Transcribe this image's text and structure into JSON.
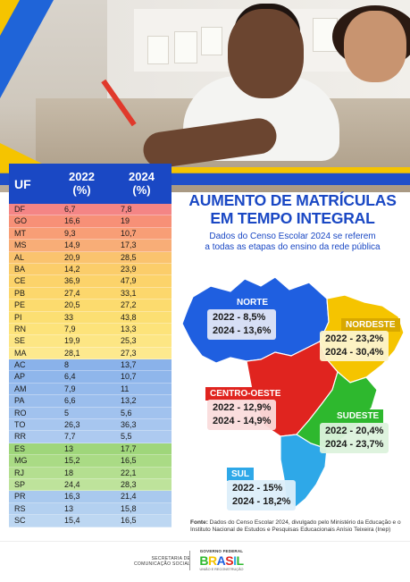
{
  "table": {
    "headers": {
      "uf": "UF",
      "y2022": "2022\n(%)",
      "y2024": "2024\n(%)"
    },
    "rows": [
      {
        "uf": "DF",
        "v2022": "6,7",
        "v2024": "7,8",
        "color": "#f48585"
      },
      {
        "uf": "GO",
        "v2022": "16,6",
        "v2024": "19",
        "color": "#f79077"
      },
      {
        "uf": "MT",
        "v2022": "9,3",
        "v2024": "10,7",
        "color": "#f89e76"
      },
      {
        "uf": "MS",
        "v2022": "14,9",
        "v2024": "17,3",
        "color": "#f8ad77"
      },
      {
        "uf": "AL",
        "v2022": "20,9",
        "v2024": "28,5",
        "color": "#fac36e"
      },
      {
        "uf": "BA",
        "v2022": "14,2",
        "v2024": "23,9",
        "color": "#fbcd6a"
      },
      {
        "uf": "CE",
        "v2022": "36,9",
        "v2024": "47,9",
        "color": "#fcd36a"
      },
      {
        "uf": "PB",
        "v2022": "27,4",
        "v2024": "33,1",
        "color": "#fcd76c"
      },
      {
        "uf": "PE",
        "v2022": "20,5",
        "v2024": "27,2",
        "color": "#fcdb6e"
      },
      {
        "uf": "PI",
        "v2022": "33",
        "v2024": "43,8",
        "color": "#fcdf72"
      },
      {
        "uf": "RN",
        "v2022": "7,9",
        "v2024": "13,3",
        "color": "#fde37a"
      },
      {
        "uf": "SE",
        "v2022": "19,9",
        "v2024": "25,3",
        "color": "#fde684"
      },
      {
        "uf": "MA",
        "v2022": "28,1",
        "v2024": "27,3",
        "color": "#fde98e"
      },
      {
        "uf": "AC",
        "v2022": "8",
        "v2024": "13,7",
        "color": "#8ab2ea"
      },
      {
        "uf": "AP",
        "v2022": "6,4",
        "v2024": "10,7",
        "color": "#8fb6eb"
      },
      {
        "uf": "AM",
        "v2022": "7,9",
        "v2024": "11",
        "color": "#95baec"
      },
      {
        "uf": "PA",
        "v2022": "6,6",
        "v2024": "13,2",
        "color": "#9bbeed"
      },
      {
        "uf": "RO",
        "v2022": "5",
        "v2024": "5,6",
        "color": "#a1c2ee"
      },
      {
        "uf": "TO",
        "v2022": "26,3",
        "v2024": "36,3",
        "color": "#a7c6ef"
      },
      {
        "uf": "RR",
        "v2022": "7,7",
        "v2024": "5,5",
        "color": "#adcaf0"
      },
      {
        "uf": "ES",
        "v2022": "13",
        "v2024": "17,7",
        "color": "#9fd67a"
      },
      {
        "uf": "MG",
        "v2022": "15,2",
        "v2024": "16,5",
        "color": "#aadb85"
      },
      {
        "uf": "RJ",
        "v2022": "18",
        "v2024": "22,1",
        "color": "#b4df90"
      },
      {
        "uf": "SP",
        "v2022": "24,4",
        "v2024": "28,3",
        "color": "#bee39b"
      },
      {
        "uf": "PR",
        "v2022": "16,3",
        "v2024": "21,4",
        "color": "#a9c9ee"
      },
      {
        "uf": "RS",
        "v2022": "13",
        "v2024": "15,8",
        "color": "#b3d0f0"
      },
      {
        "uf": "SC",
        "v2022": "15,4",
        "v2024": "16,5",
        "color": "#bdd7f2"
      }
    ]
  },
  "title_line1": "AUMENTO DE MATRÍCULAS",
  "title_line2": "EM TEMPO INTEGRAL",
  "subtitle_line1": "Dados do Censo Escolar 2024 se referem",
  "subtitle_line2": "a todas as etapas do ensino da rede pública",
  "regions": {
    "norte": {
      "name": "NORTE",
      "l2022": "2022 - 8,5%",
      "l2024": "2024 - 13,6%",
      "color": "#1f5fe0"
    },
    "nordeste": {
      "name": "NORDESTE",
      "l2022": "2022 - 23,2%",
      "l2024": "2024 - 30,4%",
      "color": "#f5c400"
    },
    "centro_oeste": {
      "name": "CENTRO-OESTE",
      "l2022": "2022 - 12,9%",
      "l2024": "2024 - 14,9%",
      "color": "#e0241f"
    },
    "sudeste": {
      "name": "SUDESTE",
      "l2022": "2022 - 20,4%",
      "l2024": "2024 - 23,7%",
      "color": "#2eb82e"
    },
    "sul": {
      "name": "SUL",
      "l2022": "2022 - 15%",
      "l2024": "2024 - 18,2%",
      "color": "#2ea8e8"
    }
  },
  "source_label": "Fonte:",
  "source_text": "Dados do Censo Escolar 2024, divulgado pelo Ministério da Educação e o Instituto Nacional de Estudos e Pesquisas Educacionais Anísio Teixeira (Inep)",
  "footer": {
    "secom_line1": "SECRETARIA DE",
    "secom_line2": "COMUNICAÇÃO SOCIAL",
    "gov_label": "GOVERNO FEDERAL",
    "brasil": "BRASIL",
    "slogan": "UNIÃO E RECONSTRUÇÃO"
  }
}
